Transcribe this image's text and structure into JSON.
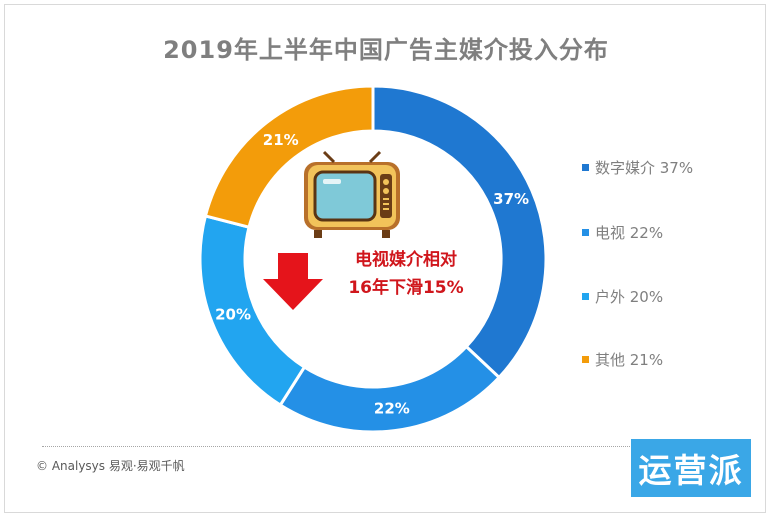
{
  "chart_data": {
    "type": "pie",
    "style": "donut",
    "title": "2019年上半年中国广告主媒介投入分布",
    "categories": [
      "数字媒介",
      "电视",
      "户外",
      "其他"
    ],
    "values": [
      37,
      22,
      20,
      21
    ],
    "value_labels": [
      "37%",
      "22%",
      "20%",
      "21%"
    ],
    "legend_labels": [
      "数字媒介 37%",
      "电视 22%",
      "户外 20%",
      "其他 21%"
    ],
    "colors": [
      "#1f78d1",
      "#2490e6",
      "#22a5f0",
      "#f39c0a"
    ],
    "legend_position": "right",
    "annotation": {
      "line1": "电视媒介相对",
      "line2": "16年下滑15%"
    }
  },
  "footer": {
    "source": "© Analysys 易观·易观千帆",
    "badge": "运营派"
  }
}
